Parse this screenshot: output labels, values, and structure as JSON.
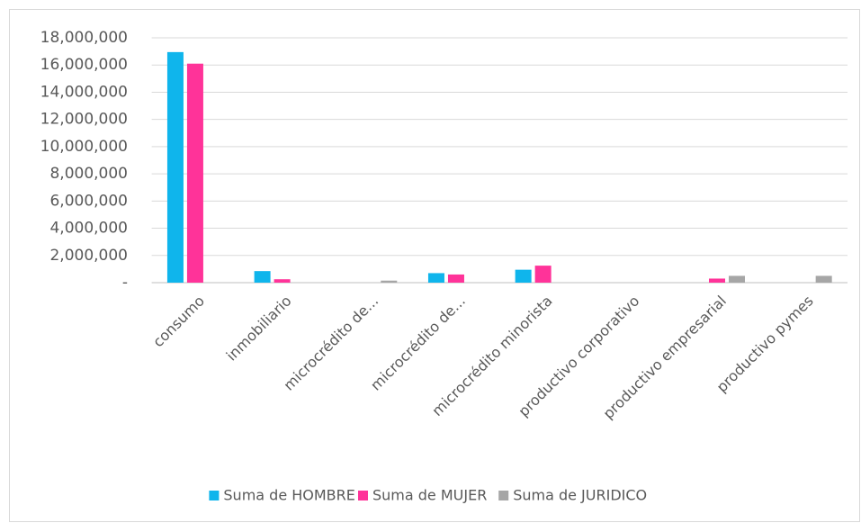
{
  "chart_data": {
    "type": "bar",
    "categories": [
      "consumo",
      "inmobiliario",
      "microcrédito de...",
      "microcrédito de...",
      "microcrédito minorista",
      "productivo corporativo",
      "productivo empresarial",
      "productivo pymes"
    ],
    "series": [
      {
        "name": "Suma de HOMBRE",
        "color": "#0fb5ec",
        "values": [
          16950000,
          850000,
          0,
          700000,
          950000,
          0,
          0,
          0
        ]
      },
      {
        "name": "Suma de MUJER",
        "color": "#ff3399",
        "values": [
          16100000,
          250000,
          0,
          600000,
          1250000,
          0,
          300000,
          0
        ]
      },
      {
        "name": "Suma de JURIDICO",
        "color": "#a6a6a6",
        "values": [
          0,
          0,
          150000,
          0,
          0,
          0,
          500000,
          500000
        ]
      }
    ],
    "ylim": [
      0,
      18000000
    ],
    "yticks": [
      {
        "value": 0,
        "label": "-"
      },
      {
        "value": 2000000,
        "label": "2,000,000"
      },
      {
        "value": 4000000,
        "label": "4,000,000"
      },
      {
        "value": 6000000,
        "label": "6,000,000"
      },
      {
        "value": 8000000,
        "label": "8,000,000"
      },
      {
        "value": 10000000,
        "label": "10,000,000"
      },
      {
        "value": 12000000,
        "label": "12,000,000"
      },
      {
        "value": 14000000,
        "label": "14,000,000"
      },
      {
        "value": 16000000,
        "label": "16,000,000"
      },
      {
        "value": 18000000,
        "label": "18,000,000"
      }
    ],
    "grid": true,
    "legend": "bottom"
  }
}
